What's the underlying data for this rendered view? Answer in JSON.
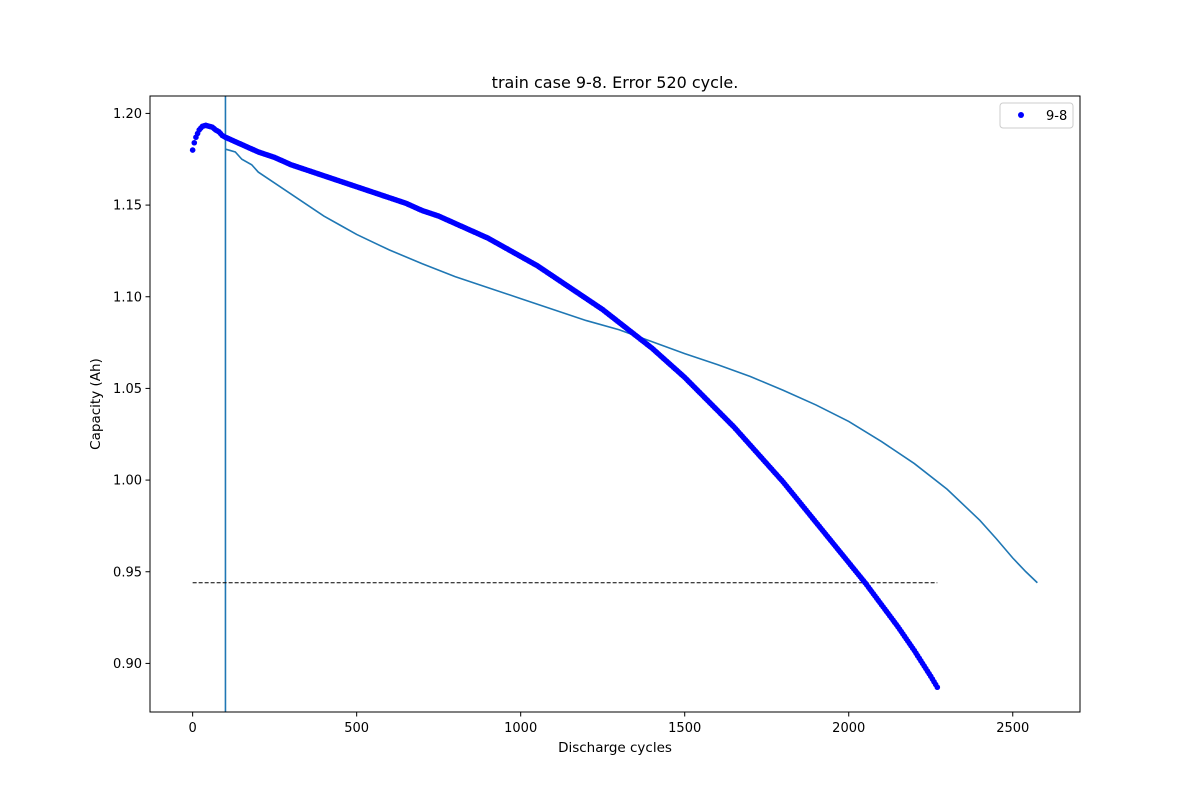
{
  "chart_data": {
    "type": "line",
    "title": "train case 9-8. Error 520 cycle.",
    "xlabel": "Discharge cycles",
    "ylabel": "Capacity (Ah)",
    "xlim": [
      -130,
      2705
    ],
    "ylim": [
      0.8735,
      1.2095
    ],
    "xticks": [
      0,
      500,
      1000,
      1500,
      2000,
      2500
    ],
    "xtick_labels": [
      "0",
      "500",
      "1000",
      "1500",
      "2000",
      "2500"
    ],
    "yticks": [
      0.9,
      0.95,
      1.0,
      1.05,
      1.1,
      1.15,
      1.2
    ],
    "ytick_labels": [
      "0.90",
      "0.95",
      "1.00",
      "1.05",
      "1.10",
      "1.15",
      "1.20"
    ],
    "grid": false,
    "legend": {
      "position": "top-right",
      "entries": [
        "9-8"
      ]
    },
    "series": [
      {
        "name": "9-8",
        "style": "points",
        "color": "#0000ff",
        "x_range": [
          0,
          2270
        ],
        "points": [
          [
            0,
            1.18
          ],
          [
            5,
            1.184
          ],
          [
            10,
            1.187
          ],
          [
            15,
            1.189
          ],
          [
            20,
            1.191
          ],
          [
            30,
            1.193
          ],
          [
            40,
            1.1935
          ],
          [
            50,
            1.193
          ],
          [
            60,
            1.1925
          ],
          [
            70,
            1.191
          ],
          [
            80,
            1.19
          ],
          [
            90,
            1.188
          ],
          [
            100,
            1.187
          ],
          [
            150,
            1.183
          ],
          [
            200,
            1.179
          ],
          [
            250,
            1.176
          ],
          [
            300,
            1.172
          ],
          [
            350,
            1.169
          ],
          [
            400,
            1.166
          ],
          [
            450,
            1.163
          ],
          [
            500,
            1.16
          ],
          [
            550,
            1.157
          ],
          [
            600,
            1.154
          ],
          [
            650,
            1.151
          ],
          [
            700,
            1.147
          ],
          [
            750,
            1.144
          ],
          [
            800,
            1.14
          ],
          [
            850,
            1.136
          ],
          [
            900,
            1.132
          ],
          [
            950,
            1.127
          ],
          [
            1000,
            1.122
          ],
          [
            1050,
            1.117
          ],
          [
            1100,
            1.111
          ],
          [
            1150,
            1.105
          ],
          [
            1200,
            1.099
          ],
          [
            1250,
            1.093
          ],
          [
            1300,
            1.086
          ],
          [
            1350,
            1.079
          ],
          [
            1400,
            1.072
          ],
          [
            1450,
            1.064
          ],
          [
            1500,
            1.056
          ],
          [
            1550,
            1.047
          ],
          [
            1600,
            1.038
          ],
          [
            1650,
            1.029
          ],
          [
            1700,
            1.019
          ],
          [
            1750,
            1.009
          ],
          [
            1800,
            0.999
          ],
          [
            1850,
            0.988
          ],
          [
            1900,
            0.977
          ],
          [
            1950,
            0.966
          ],
          [
            2000,
            0.955
          ],
          [
            2050,
            0.944
          ],
          [
            2100,
            0.932
          ],
          [
            2150,
            0.92
          ],
          [
            2200,
            0.907
          ],
          [
            2250,
            0.893
          ],
          [
            2270,
            0.887
          ]
        ]
      },
      {
        "name": "",
        "style": "line",
        "color": "#1f77b4",
        "points": [
          [
            100,
            1.1805
          ],
          [
            110,
            1.18
          ],
          [
            130,
            1.179
          ],
          [
            150,
            1.175
          ],
          [
            180,
            1.172
          ],
          [
            200,
            1.168
          ],
          [
            250,
            1.162
          ],
          [
            300,
            1.156
          ],
          [
            350,
            1.15
          ],
          [
            400,
            1.144
          ],
          [
            450,
            1.139
          ],
          [
            500,
            1.134
          ],
          [
            600,
            1.1255
          ],
          [
            700,
            1.118
          ],
          [
            800,
            1.111
          ],
          [
            900,
            1.105
          ],
          [
            1000,
            1.099
          ],
          [
            1100,
            1.093
          ],
          [
            1200,
            1.087
          ],
          [
            1300,
            1.082
          ],
          [
            1400,
            1.0755
          ],
          [
            1500,
            1.069
          ],
          [
            1600,
            1.063
          ],
          [
            1700,
            1.0565
          ],
          [
            1800,
            1.049
          ],
          [
            1900,
            1.041
          ],
          [
            2000,
            1.032
          ],
          [
            2100,
            1.021
          ],
          [
            2200,
            1.009
          ],
          [
            2300,
            0.995
          ],
          [
            2400,
            0.978
          ],
          [
            2450,
            0.968
          ],
          [
            2500,
            0.9575
          ],
          [
            2540,
            0.95
          ],
          [
            2575,
            0.944
          ]
        ]
      },
      {
        "name": "",
        "style": "vline",
        "color": "#1f77b4",
        "x": 100
      },
      {
        "name": "",
        "style": "dashed-hline",
        "color": "#000000",
        "y": 0.944,
        "x_range": [
          0,
          2270
        ]
      }
    ]
  }
}
